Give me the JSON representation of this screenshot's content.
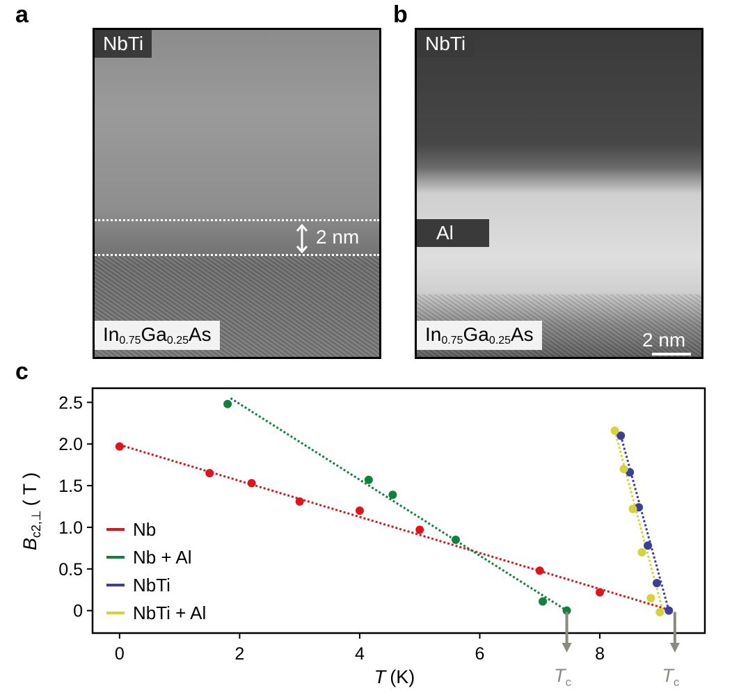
{
  "panels": {
    "a": {
      "letter": "a",
      "top_label": "NbTi",
      "bottom_label": {
        "main1": "In",
        "sub1": "0.75",
        "main2": "Ga",
        "sub2": "0.25",
        "main3": "As"
      },
      "thickness_label": "2 nm"
    },
    "b": {
      "letter": "b",
      "top_label": "NbTi",
      "mid_label": "Al",
      "bottom_label": {
        "main1": "In",
        "sub1": "0.75",
        "main2": "Ga",
        "sub2": "0.25",
        "main3": "As"
      },
      "scalebar_label": "2 nm"
    },
    "c": {
      "letter": "c"
    }
  },
  "colors": {
    "nb": "#e0141c",
    "nb_al": "#11823b",
    "nbti": "#3b3f9a",
    "nbti_al": "#d6d23a",
    "tc_arrow": "#8a8a80"
  },
  "chart_data": {
    "type": "scatter",
    "title": "",
    "xlabel_italic": "T",
    "xlabel_unit": "(K)",
    "ylabel_main": "B",
    "ylabel_sub": "c2,⊥",
    "ylabel_unit": "( T )",
    "xlim": [
      -0.45,
      9.75
    ],
    "ylim": [
      -0.27,
      2.67
    ],
    "xticks": [
      0,
      2,
      4,
      6,
      8
    ],
    "xtick_labels": [
      "0",
      "2",
      "4",
      "6",
      "8"
    ],
    "yticks": [
      0,
      0.5,
      1.0,
      1.5,
      2.0,
      2.5
    ],
    "ytick_labels": [
      "0",
      "0.5",
      "1.0",
      "1.5",
      "2.0",
      "2.5"
    ],
    "legend_position": "lower-left",
    "tc_label": {
      "main": "T",
      "sub": "c"
    },
    "tc_values": [
      7.45,
      9.25
    ],
    "series": [
      {
        "name": "Nb",
        "color": "#e0141c",
        "x": [
          0.0,
          1.5,
          2.2,
          3.0,
          4.0,
          5.0,
          7.0,
          8.0
        ],
        "y": [
          1.97,
          1.65,
          1.53,
          1.31,
          1.2,
          0.97,
          0.48,
          0.22
        ],
        "fit": {
          "x": [
            0.0,
            9.2
          ],
          "y": [
            1.99,
            0.0
          ]
        }
      },
      {
        "name": "Nb + Al",
        "color": "#11823b",
        "x": [
          1.8,
          4.15,
          4.55,
          5.6,
          7.05,
          7.45
        ],
        "y": [
          2.48,
          1.57,
          1.39,
          0.85,
          0.11,
          0.0
        ],
        "fit": {
          "x": [
            1.85,
            7.45
          ],
          "y": [
            2.55,
            0.0
          ]
        }
      },
      {
        "name": "NbTi",
        "color": "#3b3f9a",
        "x": [
          8.35,
          8.5,
          8.65,
          8.8,
          8.95,
          9.15
        ],
        "y": [
          2.1,
          1.66,
          1.24,
          0.78,
          0.33,
          0.0
        ],
        "fit": {
          "x": [
            8.35,
            9.15
          ],
          "y": [
            2.1,
            0.0
          ]
        }
      },
      {
        "name": "NbTi + Al",
        "color": "#d6d23a",
        "x": [
          8.25,
          8.4,
          8.55,
          8.7,
          8.85,
          9.0
        ],
        "y": [
          2.16,
          1.7,
          1.22,
          0.7,
          0.15,
          -0.02
        ],
        "fit": {
          "x": [
            8.25,
            9.05
          ],
          "y": [
            2.16,
            0.0
          ]
        }
      }
    ]
  }
}
